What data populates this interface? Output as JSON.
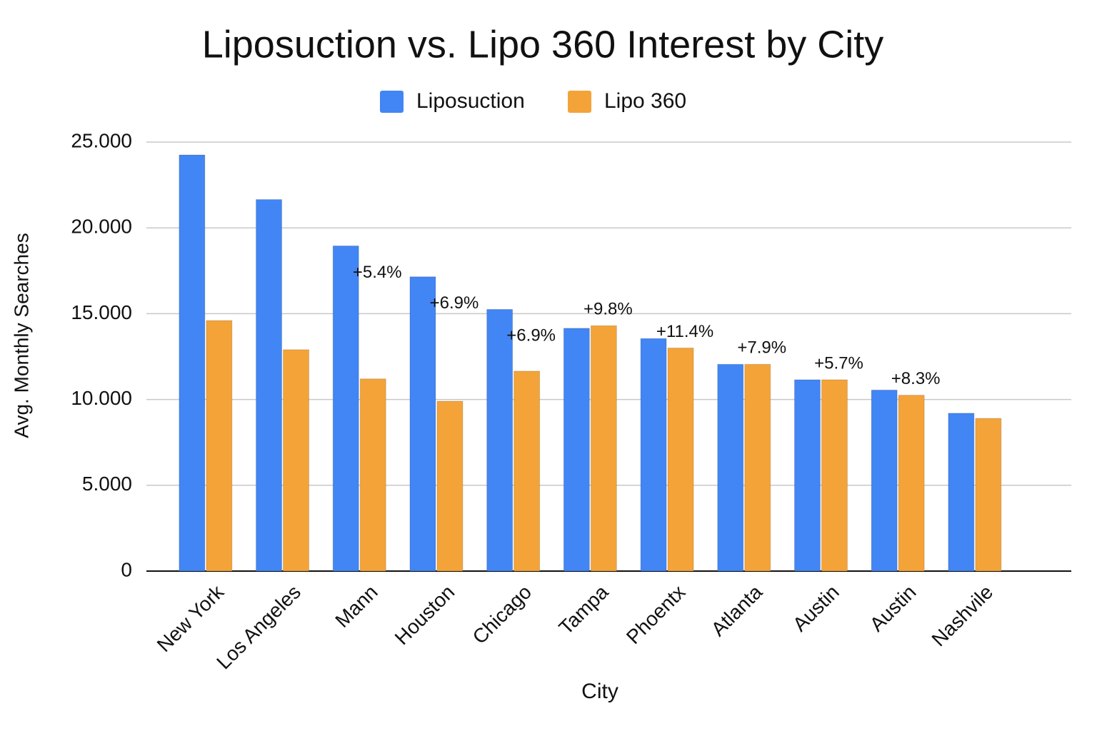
{
  "chart_data": {
    "type": "bar",
    "title": "Liposuction vs. Lipo 360 Interest by City",
    "x_label": "City",
    "y_label": "Avg. Monthly Searches",
    "categories": [
      "New York",
      "Los Angeles",
      "Mann",
      "Houston",
      "Chicago",
      "Tampa",
      "Phoentx",
      "Atlanta",
      "Austin",
      "Austin",
      "Nashvile"
    ],
    "series": [
      {
        "name": "Liposuction",
        "color": "#4285f4",
        "values": [
          24250,
          21650,
          18950,
          17150,
          15250,
          14150,
          13550,
          12050,
          11150,
          10550,
          9200
        ]
      },
      {
        "name": "Lipo 360",
        "color": "#f4a338",
        "values": [
          14600,
          12900,
          11200,
          9900,
          11650,
          14300,
          13000,
          12050,
          11150,
          10250,
          8900
        ]
      }
    ],
    "annotations": [
      null,
      null,
      "+5.4%",
      "+6.9%",
      "+6.9%",
      "+9.8%",
      "+11.4%",
      "+7.9%",
      "+5.7%",
      "+8.3%",
      null
    ],
    "ylim": [
      0,
      25000
    ],
    "yticks": [
      0,
      {
        "value": 5000,
        "label": "5.000"
      },
      {
        "value": 10000,
        "label": "10.000"
      },
      {
        "value": 15000,
        "label": "15.000"
      },
      {
        "value": 20000,
        "label": "20.000"
      },
      {
        "value": 25000,
        "label": "25.000"
      }
    ],
    "grid": true,
    "legend": "top"
  }
}
